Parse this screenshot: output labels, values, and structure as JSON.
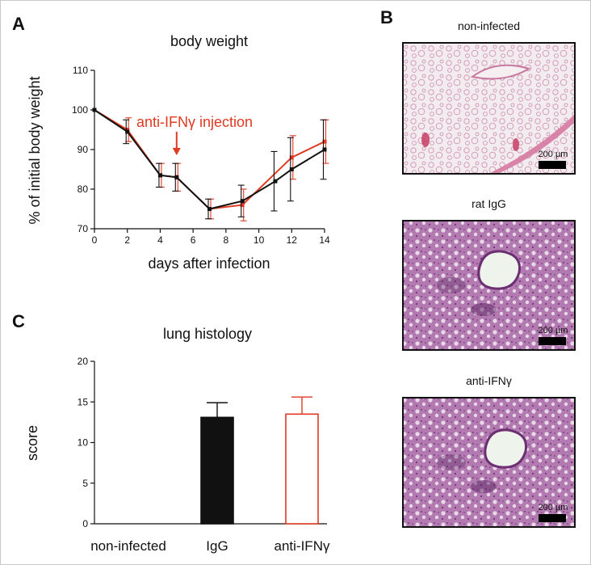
{
  "panels": {
    "A": "A",
    "B": "B",
    "C": "C"
  },
  "histology_images": [
    {
      "title": "non-infected",
      "scale_bar": "200 µm",
      "tissue": "sparse-alveolar"
    },
    {
      "title": "rat IgG",
      "scale_bar": "200 µm",
      "tissue": "dense-inflamed"
    },
    {
      "title": "anti-IFNγ",
      "scale_bar": "200 µm",
      "tissue": "dense-inflamed"
    }
  ],
  "colors": {
    "black_series": "#111111",
    "red_series": "#e03a22",
    "tissue_light": "#f1e9ec",
    "tissue_pink": "#d9a6c2",
    "tissue_purple": "#8a4d8f"
  },
  "chart_data": [
    {
      "type": "line",
      "title": "body weight",
      "xlabel": "days after infection",
      "ylabel": "% of initial body weight",
      "xlim": [
        0,
        14
      ],
      "ylim": [
        70,
        110
      ],
      "xticks": [
        0,
        2,
        4,
        6,
        8,
        10,
        12,
        14
      ],
      "yticks": [
        70,
        80,
        90,
        100,
        110
      ],
      "annotation": {
        "text": "anti-IFNγ injection",
        "x": 5
      },
      "series": [
        {
          "color": "#e03a22",
          "x": [
            0,
            2,
            4,
            5,
            7,
            9,
            12,
            14
          ],
          "y": [
            100,
            95,
            83.5,
            83,
            75,
            76,
            88,
            92
          ],
          "err": [
            0,
            3,
            3,
            3.5,
            2.5,
            4,
            5.5,
            5.5
          ]
        },
        {
          "color": "#111111",
          "x": [
            0,
            2,
            4,
            5,
            7,
            9,
            11,
            12,
            14
          ],
          "y": [
            100,
            94.5,
            83.5,
            83,
            75,
            77,
            82,
            85,
            90
          ],
          "err": [
            0,
            3,
            3,
            3.5,
            2.5,
            4,
            7.5,
            8,
            7.5
          ]
        }
      ]
    },
    {
      "type": "bar",
      "title": "lung histology",
      "xlabel": "",
      "ylabel": "score",
      "ylim": [
        0,
        20
      ],
      "yticks": [
        0,
        5,
        10,
        15,
        20
      ],
      "categories": [
        "non-infected",
        "IgG",
        "anti-IFNγ"
      ],
      "values": [
        0,
        13.1,
        13.5
      ],
      "errors": [
        0,
        1.8,
        2.1
      ],
      "fills": [
        "none",
        "#111111",
        "#ffffff"
      ],
      "strokes": [
        "none",
        "#111111",
        "#e03a22"
      ]
    }
  ]
}
